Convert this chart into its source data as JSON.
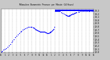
{
  "title": "Milwaukee  Barometric  Pressure  per  Minute  (24 Hours)",
  "background_color": "#c8c8c8",
  "plot_bg_color": "#ffffff",
  "dot_color": "#0000ff",
  "grid_color": "#aaaaaa",
  "grid_linestyle": "--",
  "ylim": [
    29.0,
    30.35
  ],
  "xlim": [
    0,
    1440
  ],
  "ytick_values": [
    29.0,
    29.1,
    29.2,
    29.3,
    29.4,
    29.5,
    29.6,
    29.7,
    29.8,
    29.9,
    30.0,
    30.1,
    30.2,
    30.3
  ],
  "ytick_labels": [
    "29.0",
    "29.1",
    "29.2",
    "29.3",
    "29.4",
    "29.5",
    "29.6",
    "29.7",
    "29.8",
    "29.9",
    "30.0",
    "30.1",
    "30.2",
    "30.3"
  ],
  "xtick_positions": [
    0,
    60,
    120,
    180,
    240,
    300,
    360,
    420,
    480,
    540,
    600,
    660,
    720,
    780,
    840,
    900,
    960,
    1020,
    1080,
    1140,
    1200,
    1260,
    1320,
    1380,
    1440
  ],
  "xtick_labels": [
    "12",
    "1",
    "2",
    "3",
    "4",
    "5",
    "6",
    "7",
    "8",
    "9",
    "10",
    "11",
    "12",
    "1",
    "2",
    "3",
    "4",
    "5",
    "6",
    "7",
    "8",
    "9",
    "10",
    "11",
    "12"
  ],
  "blue_bar_xstart": 840,
  "blue_bar_xend": 1440,
  "blue_bar_y": 30.31,
  "dot_size": 1.0,
  "data_x": [
    0,
    20,
    40,
    60,
    80,
    100,
    120,
    140,
    160,
    180,
    200,
    220,
    240,
    260,
    280,
    300,
    320,
    340,
    360,
    380,
    400,
    420,
    440,
    460,
    480,
    500,
    510,
    520,
    530,
    540,
    550,
    560,
    570,
    580,
    590,
    600,
    610,
    620,
    630,
    640,
    650,
    660,
    670,
    680,
    690,
    700,
    710,
    720,
    730,
    740,
    750,
    760,
    770,
    780,
    790,
    800,
    810,
    820,
    830,
    840,
    850,
    860,
    870,
    880,
    890,
    900,
    920,
    940,
    960,
    980,
    1000,
    1010,
    1020,
    1030,
    1040,
    1050,
    1060,
    1070,
    1080,
    1090,
    1100,
    1110,
    1120,
    1130,
    1140,
    1150,
    1160,
    1170,
    1200,
    1220,
    1240,
    1260,
    1280,
    1300,
    1320,
    1340,
    1360,
    1380,
    1400,
    1420,
    1440
  ],
  "data_y": [
    29.02,
    29.04,
    29.07,
    29.1,
    29.13,
    29.17,
    29.21,
    29.26,
    29.31,
    29.36,
    29.41,
    29.46,
    29.51,
    29.55,
    29.59,
    29.63,
    29.67,
    29.7,
    29.73,
    29.75,
    29.77,
    29.78,
    29.79,
    29.79,
    29.78,
    29.77,
    29.76,
    29.75,
    29.73,
    29.71,
    29.7,
    29.69,
    29.68,
    29.67,
    29.66,
    29.65,
    29.64,
    29.63,
    29.63,
    29.63,
    29.63,
    29.63,
    29.63,
    29.63,
    29.62,
    29.61,
    29.6,
    29.6,
    29.6,
    29.6,
    29.61,
    29.62,
    29.63,
    29.65,
    29.67,
    29.69,
    29.71,
    29.73,
    29.8,
    30.28,
    30.28,
    30.28,
    30.28,
    30.28,
    30.28,
    30.28,
    30.28,
    30.25,
    30.22,
    30.19,
    30.17,
    30.16,
    30.15,
    30.14,
    30.14,
    30.14,
    30.14,
    30.15,
    30.16,
    30.17,
    30.18,
    30.19,
    30.2,
    30.21,
    30.22,
    30.23,
    30.24,
    30.25,
    30.26,
    30.27,
    30.28,
    30.28,
    30.28,
    30.28,
    30.28,
    30.28,
    30.28,
    30.28,
    30.28,
    30.28,
    30.28
  ]
}
